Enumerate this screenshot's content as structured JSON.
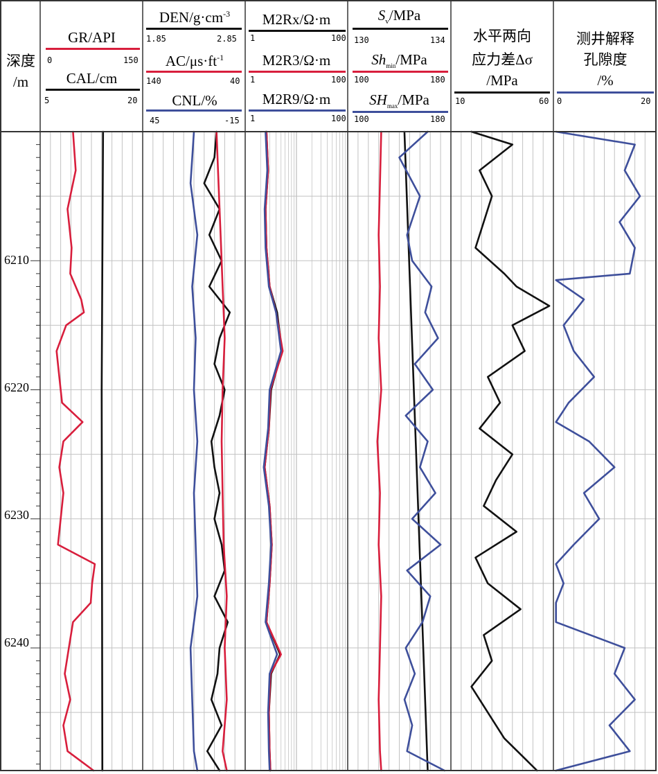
{
  "colors": {
    "red": "#d81e3c",
    "black": "#111111",
    "blue": "#3e4f9b",
    "grid": "#c2c2c2",
    "frame": "#333333"
  },
  "depth_track": {
    "title_line1": "深度",
    "title_line2": "/m",
    "ticks": [
      "6210",
      "6220",
      "6230",
      "6240"
    ]
  },
  "track1": {
    "gr": {
      "label": "GR/API",
      "min": "0",
      "max": "150"
    },
    "cal": {
      "label": "CAL/cm",
      "min": "5",
      "max": "20"
    }
  },
  "track2": {
    "den": {
      "label": "DEN/g·cm",
      "sup": "-3",
      "min": "1.85",
      "max": "2.85"
    },
    "ac": {
      "label": "AC/μs·ft",
      "sup": "-1",
      "min": "140",
      "max": "40"
    },
    "cnl": {
      "label": "CNL/%",
      "min": "45",
      "max": "-15"
    }
  },
  "track3": {
    "rx": {
      "label": "M2Rx/Ω·m",
      "min": "1",
      "max": "100"
    },
    "r3": {
      "label": "M2R3/Ω·m",
      "min": "1",
      "max": "100"
    },
    "r9": {
      "label": "M2R9/Ω·m",
      "min": "1",
      "max": "100"
    }
  },
  "track4": {
    "sv": {
      "label_main": "S",
      "label_sub": "v",
      "label_rest": "/MPa",
      "min": "130",
      "max": "134"
    },
    "shmin": {
      "label_main": "Sh",
      "label_sub": "min",
      "label_rest": "/MPa",
      "min": "100",
      "max": "180"
    },
    "shmax": {
      "label_main": "SH",
      "label_sub": "max",
      "label_rest": "/MPa",
      "min": "100",
      "max": "180"
    }
  },
  "track5": {
    "title_line1": "水平两向",
    "title_line2": "应力差Δσ",
    "title_line3": "/MPa",
    "min": "10",
    "max": "60"
  },
  "track6": {
    "title_line1": "测井解释",
    "title_line2": "孔隙度",
    "title_line3": "/%",
    "min": "0",
    "max": "20"
  },
  "chart_data": {
    "type": "line",
    "y_axis": "depth (m)",
    "ylim": [
      6200,
      6249.5
    ],
    "depth_ticks": [
      6210,
      6220,
      6230,
      6240
    ],
    "tracks": [
      {
        "track": 1,
        "series": [
          {
            "name": "GR/API",
            "xlim": [
              0,
              150
            ],
            "scale": "linear",
            "depth": [
              6200,
              6203,
              6206,
              6209,
              6211,
              6213,
              6214,
              6215,
              6217,
              6219,
              6221,
              6222.5,
              6224,
              6226,
              6228,
              6230,
              6232,
              6233.5,
              6235,
              6236.5,
              6238,
              6240,
              6242,
              6244,
              6246,
              6248,
              6249.5
            ],
            "values": [
              48,
              52,
              40,
              46,
              44,
              60,
              64,
              38,
              24,
              28,
              32,
              62,
              34,
              28,
              34,
              30,
              26,
              80,
              76,
              74,
              48,
              42,
              36,
              44,
              34,
              40,
              78
            ]
          },
          {
            "name": "CAL/cm",
            "xlim": [
              5,
              20
            ],
            "scale": "linear",
            "depth": [
              6200,
              6220,
              6249.5
            ],
            "values": [
              14.2,
              14.0,
              14.1
            ]
          }
        ]
      },
      {
        "track": 2,
        "series": [
          {
            "name": "DEN/g·cm-3",
            "xlim": [
              1.85,
              2.85
            ],
            "scale": "linear",
            "depth": [
              6200,
              6202,
              6204,
              6206,
              6208,
              6210,
              6212,
              6214,
              6216,
              6218,
              6220,
              6222,
              6224,
              6226,
              6228,
              6230,
              6232,
              6234,
              6236,
              6238,
              6240,
              6242,
              6244,
              6246,
              6248,
              6249.5
            ],
            "values": [
              2.57,
              2.55,
              2.45,
              2.6,
              2.5,
              2.62,
              2.5,
              2.7,
              2.6,
              2.55,
              2.65,
              2.6,
              2.52,
              2.55,
              2.6,
              2.55,
              2.62,
              2.65,
              2.55,
              2.68,
              2.6,
              2.58,
              2.52,
              2.62,
              2.48,
              2.6
            ]
          },
          {
            "name": "AC/μs·ft-1",
            "xlim": [
              140,
              40
            ],
            "scale": "linear",
            "depth": [
              6200,
              6204,
              6208,
              6212,
              6216,
              6220,
              6224,
              6228,
              6232,
              6236,
              6240,
              6244,
              6248,
              6249.5
            ],
            "values": [
              68,
              66,
              64,
              62,
              60,
              62,
              63,
              62,
              61,
              58,
              60,
              58,
              62,
              58
            ]
          },
          {
            "name": "CNL/%",
            "xlim": [
              45,
              -15
            ],
            "scale": "linear",
            "depth": [
              6200,
              6204,
              6208,
              6212,
              6216,
              6220,
              6224,
              6228,
              6232,
              6236,
              6240,
              6244,
              6248,
              6249.5
            ],
            "values": [
              15,
              17,
              13,
              16,
              14,
              15,
              13,
              15,
              14,
              13,
              17,
              16,
              15,
              13
            ]
          }
        ]
      },
      {
        "track": 3,
        "series": [
          {
            "name": "M2Rx/Ω·m",
            "xlim": [
              1,
              100
            ],
            "scale": "log",
            "depth": [
              6200,
              6203,
              6206,
              6209,
              6212,
              6214,
              6217,
              6220,
              6223,
              6226,
              6229,
              6232,
              6235,
              6238,
              6240.5,
              6242,
              6245,
              6248,
              6249.5
            ],
            "values": [
              2.6,
              2.8,
              2.5,
              2.6,
              3.0,
              4.2,
              5.2,
              3.2,
              2.9,
              2.4,
              3.0,
              3.3,
              3.0,
              2.6,
              4.8,
              3.2,
              2.9,
              3.0,
              3.1
            ]
          },
          {
            "name": "M2R3/Ω·m",
            "xlim": [
              1,
              100
            ],
            "scale": "log",
            "depth": [
              6200,
              6203,
              6206,
              6209,
              6212,
              6214,
              6217,
              6220,
              6223,
              6226,
              6229,
              6232,
              6235,
              6238,
              6240.5,
              6242,
              6245,
              6248,
              6249.5
            ],
            "values": [
              2.6,
              2.8,
              2.5,
              2.6,
              3.0,
              4.0,
              5.4,
              3.1,
              2.9,
              2.4,
              3.0,
              3.3,
              3.0,
              2.6,
              5.0,
              3.1,
              2.9,
              3.0,
              3.1
            ]
          },
          {
            "name": "M2R9/Ω·m",
            "xlim": [
              1,
              100
            ],
            "scale": "log",
            "depth": [
              6200,
              6203,
              6206,
              6209,
              6212,
              6214,
              6217,
              6220,
              6223,
              6226,
              6229,
              6232,
              6235,
              6238,
              6240.5,
              6242,
              6245,
              6248,
              6249.5
            ],
            "values": [
              2.5,
              2.7,
              2.4,
              2.5,
              2.9,
              4.0,
              5.0,
              3.0,
              2.8,
              2.3,
              2.9,
              3.2,
              2.9,
              2.5,
              4.2,
              3.0,
              2.8,
              2.9,
              3.0
            ]
          }
        ]
      },
      {
        "track": 4,
        "series": [
          {
            "name": "Sv/MPa",
            "xlim": [
              130,
              134
            ],
            "scale": "linear",
            "depth": [
              6200,
              6249.5
            ],
            "values": [
              132.2,
              133.1
            ]
          },
          {
            "name": "Shmin/MPa",
            "xlim": [
              100,
              180
            ],
            "scale": "linear",
            "depth": [
              6200,
              6204,
              6208,
              6212,
              6216,
              6220,
              6224,
              6228,
              6232,
              6236,
              6240,
              6244,
              6248,
              6249.5
            ],
            "values": [
              126,
              125,
              124,
              125,
              124,
              126,
              123,
              125,
              124,
              126,
              125,
              124,
              125,
              126
            ]
          },
          {
            "name": "SHmax/MPa",
            "xlim": [
              100,
              180
            ],
            "scale": "linear",
            "depth": [
              6200,
              6202,
              6205,
              6208,
              6210,
              6212,
              6214,
              6216,
              6218,
              6220,
              6222,
              6224,
              6226,
              6228,
              6230,
              6232,
              6234,
              6236,
              6238,
              6240,
              6242,
              6244,
              6246,
              6248,
              6249.5
            ],
            "values": [
              162,
              140,
              156,
              146,
              150,
              165,
              160,
              170,
              152,
              166,
              145,
              162,
              156,
              168,
              150,
              172,
              146,
              164,
              158,
              145,
              152,
              144,
              150,
              146,
              175
            ]
          }
        ]
      },
      {
        "track": 5,
        "series": [
          {
            "name": "水平两向应力差Δσ/MPa",
            "xlim": [
              10,
              60
            ],
            "scale": "linear",
            "depth": [
              6200,
              6201,
              6203,
              6205,
              6207,
              6209,
              6211,
              6212,
              6213.5,
              6215,
              6217,
              6219,
              6221,
              6223,
              6225,
              6227,
              6229,
              6231,
              6233,
              6235,
              6237,
              6239,
              6241,
              6243,
              6245,
              6247,
              6249.5
            ],
            "values": [
              20,
              40,
              24,
              30,
              26,
              22,
              36,
              42,
              58,
              40,
              46,
              28,
              34,
              24,
              40,
              32,
              26,
              42,
              22,
              28,
              44,
              26,
              30,
              20,
              28,
              36,
              52
            ]
          }
        ]
      },
      {
        "track": 6,
        "series": [
          {
            "name": "测井解释孔隙度/%",
            "xlim": [
              0,
              20
            ],
            "scale": "linear",
            "depth": [
              6200,
              6201,
              6203,
              6205,
              6207,
              6209,
              6211,
              6211.5,
              6213,
              6215,
              6217,
              6219,
              6221,
              6222.5,
              6224,
              6226,
              6228,
              6230,
              6232,
              6233.5,
              6235,
              6236.5,
              6238,
              6240,
              6242,
              6244,
              6246,
              6248,
              6249.5
            ],
            "values": [
              0.5,
              16,
              14,
              17,
              13,
              16,
              15,
              0.5,
              6,
              2,
              4,
              8,
              3,
              0.5,
              7,
              12,
              6,
              9,
              4,
              0.5,
              2,
              0.5,
              0.5,
              14,
              12,
              16,
              11,
              15,
              0.5
            ]
          }
        ]
      }
    ]
  }
}
